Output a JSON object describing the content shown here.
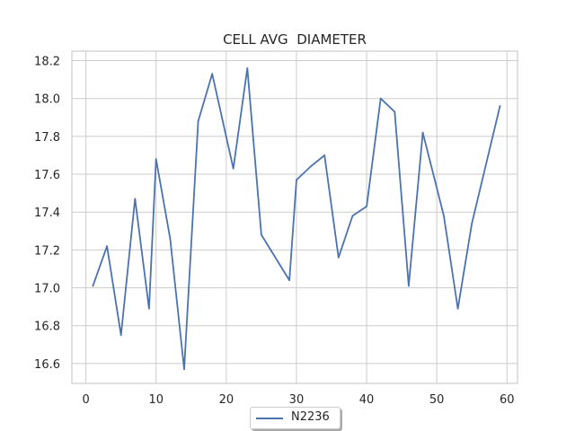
{
  "chart_data": {
    "type": "line",
    "title": "CELL AVG  DIAMETER",
    "xlabel": "",
    "ylabel": "",
    "xlim": [
      -2,
      61.5
    ],
    "ylim": [
      16.495,
      18.25
    ],
    "xticks": [
      0,
      10,
      20,
      30,
      40,
      50,
      60
    ],
    "yticks": [
      16.6,
      16.8,
      17.0,
      17.2,
      17.4,
      17.6,
      17.8,
      18.0,
      18.2
    ],
    "ytick_labels": [
      "16.6",
      "16.8",
      "17.0",
      "17.2",
      "17.4",
      "17.6",
      "17.8",
      "18.0",
      "18.2"
    ],
    "grid": true,
    "legend_position": "bottom-center",
    "series": [
      {
        "name": "N2236",
        "color": "#4c72b0",
        "x": [
          1,
          3,
          5,
          7,
          9,
          10,
          12,
          14,
          16,
          18,
          21,
          23,
          25,
          29,
          30,
          32,
          34,
          36,
          38,
          40,
          42,
          44,
          46,
          48,
          51,
          53,
          55,
          59
        ],
        "y": [
          17.01,
          17.22,
          16.75,
          17.47,
          16.89,
          17.68,
          17.26,
          16.57,
          17.88,
          18.13,
          17.63,
          18.16,
          17.28,
          17.04,
          17.57,
          17.64,
          17.7,
          17.16,
          17.38,
          17.43,
          18.0,
          17.93,
          17.01,
          17.82,
          17.38,
          16.89,
          17.34,
          17.96
        ]
      }
    ]
  }
}
